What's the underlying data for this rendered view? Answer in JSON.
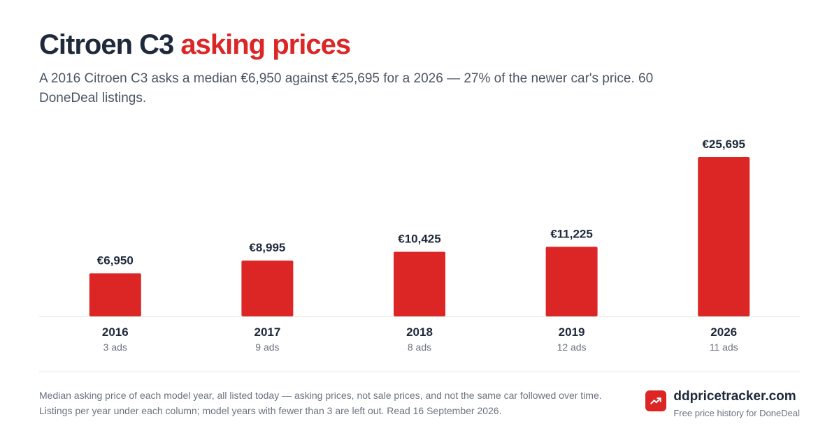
{
  "header": {
    "title_main": "Citroen C3",
    "title_accent": "asking prices",
    "subtitle": "A 2016 Citroen C3 asks a median €6,950 against €25,695 for a 2026 — 27% of the newer car's price. 60 DoneDeal listings."
  },
  "chart_data": {
    "type": "bar",
    "categories": [
      "2016",
      "2017",
      "2018",
      "2019",
      "2026"
    ],
    "values": [
      6950,
      8995,
      10425,
      11225,
      25695
    ],
    "value_labels": [
      "€6,950",
      "€8,995",
      "€10,425",
      "€11,225",
      "€25,695"
    ],
    "sub_labels": [
      "3 ads",
      "9 ads",
      "8 ads",
      "12 ads",
      "11 ads"
    ],
    "title": "",
    "xlabel": "",
    "ylabel": "",
    "ylim": [
      0,
      25695
    ],
    "grid": false,
    "bar_color": "#dc2626"
  },
  "footer": {
    "note": "Median asking price of each model year, all listed today — asking prices, not sale prices, and not the same car followed over time. Listings per year under each column; model years with fewer than 3 are left out. Read 16 September 2026.",
    "brand_name": "ddpricetracker.com",
    "brand_tagline": "Free price history for DoneDeal",
    "brand_icon": "trending-up-icon"
  }
}
